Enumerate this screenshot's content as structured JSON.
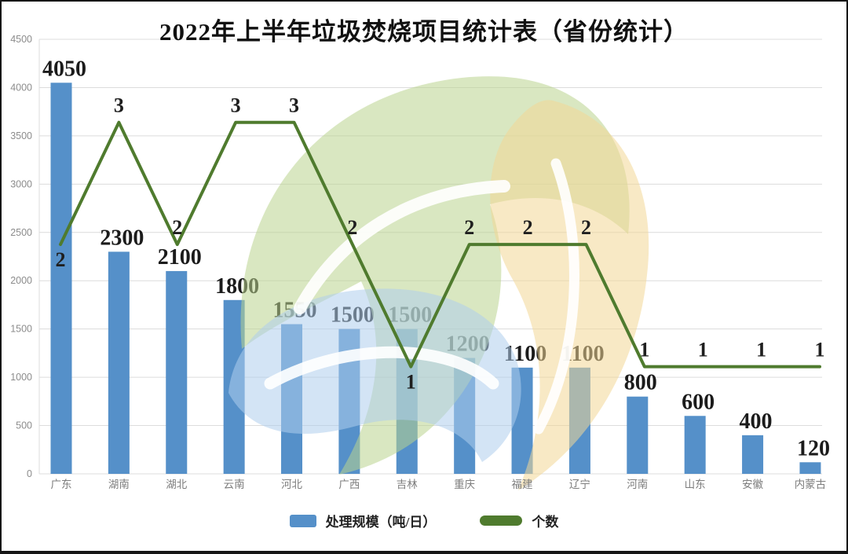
{
  "title": "2022年上半年垃圾焚烧项目统计表（省份统计）",
  "legend": {
    "bar_label": "处理规模（吨/日）",
    "line_label": "个数"
  },
  "colors": {
    "bar": "#5590c9",
    "line": "#4f7b2e",
    "grid": "#dcdcdc",
    "axis_text": "#8c8c8c",
    "category_text": "#7d7d7d",
    "bar_label_text": "#1b1b1b",
    "line_label_text": "#1f1f1f",
    "watermark_green": "#b9d48e",
    "watermark_yellow": "#f2d795",
    "watermark_blue": "#aecdec",
    "watermark_vein": "#ffffff"
  },
  "chart_data": {
    "type": "bar",
    "combo": "bar+line",
    "title": "2022年上半年垃圾焚烧项目统计表（省份统计）",
    "categories": [
      "广东",
      "湖南",
      "湖北",
      "云南",
      "河北",
      "广西",
      "吉林",
      "重庆",
      "福建",
      "辽宁",
      "河南",
      "山东",
      "安徽",
      "内蒙古"
    ],
    "series": [
      {
        "name": "处理规模（吨/日）",
        "type": "bar",
        "axis": "primary",
        "values": [
          4050,
          2300,
          2100,
          1800,
          1550,
          1500,
          1500,
          1200,
          1100,
          1100,
          800,
          600,
          400,
          120
        ]
      },
      {
        "name": "个数",
        "type": "line",
        "axis": "secondary",
        "values": [
          2,
          3,
          2,
          3,
          3,
          2,
          1,
          2,
          2,
          2,
          1,
          1,
          1,
          1
        ]
      }
    ],
    "xlabel": "",
    "ylabel": "",
    "ylim": [
      0,
      4500
    ],
    "ytick_step": 500,
    "grid": "horizontal",
    "legend_position": "bottom",
    "data_labels": true,
    "line_label_placement": [
      "below",
      "above",
      "above",
      "above",
      "above",
      "above",
      "below",
      "above",
      "above",
      "above",
      "above",
      "above",
      "above",
      "above"
    ],
    "line_value_to_primary": {
      "slope": 1265,
      "intercept": -155
    }
  }
}
